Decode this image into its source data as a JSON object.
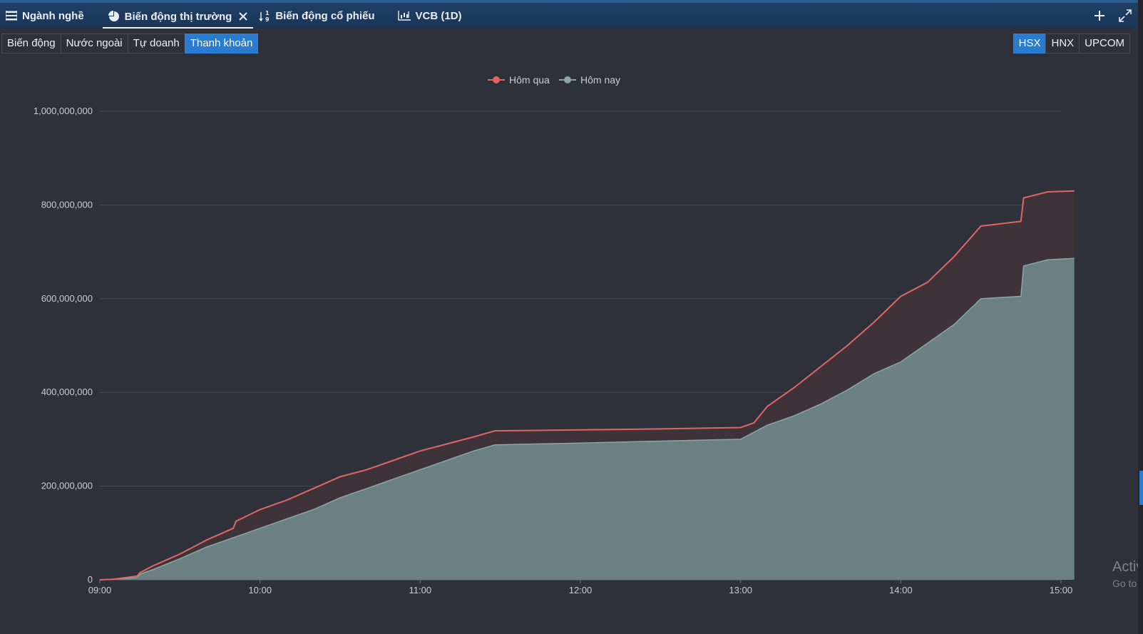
{
  "tabs": [
    {
      "label": "Ngành nghề",
      "icon": "list-icon",
      "active": false
    },
    {
      "label": "Biến động thị trường",
      "icon": "pie-chart-icon",
      "active": true,
      "closable": true
    },
    {
      "label": "Biến động cổ phiếu",
      "icon": "sort-icon",
      "active": false
    },
    {
      "label": "VCB (1D)",
      "icon": "candlestick-icon",
      "active": false
    }
  ],
  "tools": {
    "add": "plus-icon",
    "expand": "expand-icon"
  },
  "subtabs": [
    {
      "label": "Biến động",
      "active": false
    },
    {
      "label": "Nước ngoài",
      "active": false
    },
    {
      "label": "Tự doanh",
      "active": false
    },
    {
      "label": "Thanh khoản",
      "active": true
    }
  ],
  "exchanges": [
    {
      "label": "HSX",
      "active": true
    },
    {
      "label": "HNX",
      "active": false
    },
    {
      "label": "UPCOM",
      "active": false
    }
  ],
  "colors": {
    "yesterday": "#e06666",
    "today": "#8aa6a8",
    "accent": "#2a7cd0"
  },
  "chart_data": {
    "type": "area",
    "legend_position": "top-center",
    "grid": true,
    "y_ticks": [
      "0",
      "200,000,000",
      "400,000,000",
      "600,000,000",
      "800,000,000",
      "1,000,000,000"
    ],
    "x_ticks": [
      "09:00",
      "10:00",
      "11:00",
      "12:00",
      "13:00",
      "14:00",
      "15:00"
    ],
    "ylim": [
      0,
      1000000000
    ],
    "series": [
      {
        "name": "Hôm qua",
        "points": [
          [
            "09:00",
            0
          ],
          [
            "09:05",
            1000000
          ],
          [
            "09:10",
            5000000
          ],
          [
            "09:14",
            8000000
          ],
          [
            "09:15",
            15000000
          ],
          [
            "09:20",
            30000000
          ],
          [
            "09:30",
            55000000
          ],
          [
            "09:40",
            85000000
          ],
          [
            "09:50",
            110000000
          ],
          [
            "09:51",
            125000000
          ],
          [
            "10:00",
            150000000
          ],
          [
            "10:10",
            170000000
          ],
          [
            "10:20",
            195000000
          ],
          [
            "10:30",
            220000000
          ],
          [
            "10:40",
            235000000
          ],
          [
            "10:50",
            255000000
          ],
          [
            "11:00",
            275000000
          ],
          [
            "11:10",
            290000000
          ],
          [
            "11:20",
            305000000
          ],
          [
            "11:28",
            318000000
          ],
          [
            "12:00",
            320000000
          ],
          [
            "12:30",
            322000000
          ],
          [
            "13:00",
            325000000
          ],
          [
            "13:05",
            335000000
          ],
          [
            "13:10",
            370000000
          ],
          [
            "13:20",
            410000000
          ],
          [
            "13:30",
            455000000
          ],
          [
            "13:40",
            500000000
          ],
          [
            "13:50",
            550000000
          ],
          [
            "14:00",
            605000000
          ],
          [
            "14:10",
            635000000
          ],
          [
            "14:20",
            690000000
          ],
          [
            "14:30",
            755000000
          ],
          [
            "14:45",
            765000000
          ],
          [
            "14:46",
            815000000
          ],
          [
            "14:55",
            828000000
          ],
          [
            "15:05",
            830000000
          ]
        ]
      },
      {
        "name": "Hôm nay",
        "points": [
          [
            "09:00",
            0
          ],
          [
            "09:10",
            3000000
          ],
          [
            "09:14",
            5000000
          ],
          [
            "09:15",
            12000000
          ],
          [
            "09:20",
            22000000
          ],
          [
            "09:30",
            45000000
          ],
          [
            "09:40",
            70000000
          ],
          [
            "09:50",
            90000000
          ],
          [
            "10:00",
            110000000
          ],
          [
            "10:10",
            130000000
          ],
          [
            "10:20",
            150000000
          ],
          [
            "10:30",
            175000000
          ],
          [
            "10:40",
            195000000
          ],
          [
            "10:50",
            215000000
          ],
          [
            "11:00",
            235000000
          ],
          [
            "11:10",
            255000000
          ],
          [
            "11:20",
            275000000
          ],
          [
            "11:28",
            288000000
          ],
          [
            "12:00",
            292000000
          ],
          [
            "12:30",
            296000000
          ],
          [
            "13:00",
            300000000
          ],
          [
            "13:10",
            330000000
          ],
          [
            "13:20",
            350000000
          ],
          [
            "13:30",
            375000000
          ],
          [
            "13:40",
            405000000
          ],
          [
            "13:50",
            440000000
          ],
          [
            "14:00",
            465000000
          ],
          [
            "14:10",
            505000000
          ],
          [
            "14:20",
            545000000
          ],
          [
            "14:30",
            600000000
          ],
          [
            "14:45",
            605000000
          ],
          [
            "14:46",
            670000000
          ],
          [
            "14:55",
            683000000
          ],
          [
            "15:05",
            686000000
          ]
        ]
      }
    ]
  },
  "watermark": {
    "line1": "Activ",
    "line2": "Go to"
  }
}
